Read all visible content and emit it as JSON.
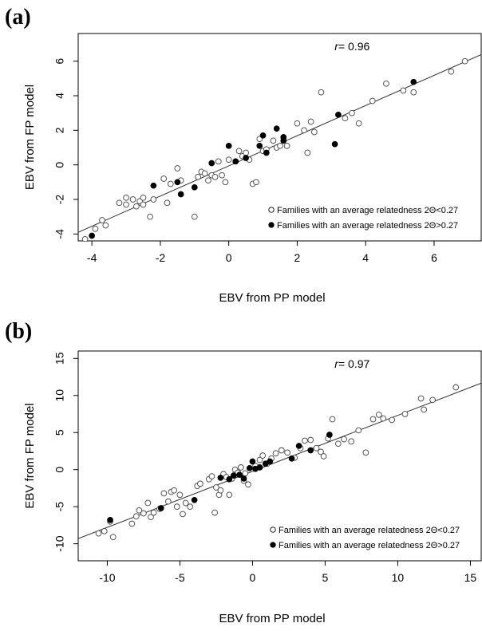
{
  "chart_data": [
    {
      "type": "scatter",
      "panel_label": "(a)",
      "xlabel": "EBV from PP model",
      "ylabel": "EBV from FP model",
      "xlim": [
        -4.4,
        7.4
      ],
      "ylim": [
        -4.4,
        7.6
      ],
      "xticks": [
        -4,
        -2,
        0,
        2,
        4,
        6
      ],
      "yticks": [
        -4,
        -2,
        0,
        2,
        4,
        6
      ],
      "annotation": {
        "prefix": "r",
        "text": "= 0.96"
      },
      "regression_line": {
        "x": [
          -4.4,
          7.4
        ],
        "y": [
          -3.9,
          6.4
        ]
      },
      "grid": false,
      "legend_position": "bottom-right",
      "series": [
        {
          "name": "Families with an average relatedness 2Θ<0.27",
          "marker": "open-circle",
          "points": [
            [
              -4.2,
              -4.3
            ],
            [
              -3.9,
              -3.7
            ],
            [
              -3.7,
              -3.2
            ],
            [
              -3.6,
              -3.5
            ],
            [
              -3.2,
              -2.2
            ],
            [
              -3.0,
              -1.9
            ],
            [
              -3.0,
              -2.3
            ],
            [
              -2.8,
              -2.0
            ],
            [
              -2.7,
              -2.4
            ],
            [
              -2.6,
              -2.1
            ],
            [
              -2.5,
              -1.9
            ],
            [
              -2.5,
              -2.3
            ],
            [
              -2.3,
              -3.0
            ],
            [
              -2.2,
              -2.0
            ],
            [
              -1.9,
              -0.8
            ],
            [
              -1.8,
              -2.2
            ],
            [
              -1.7,
              -1.1
            ],
            [
              -1.5,
              -0.2
            ],
            [
              -1.4,
              -0.9
            ],
            [
              -1.0,
              -3.0
            ],
            [
              -0.9,
              -0.7
            ],
            [
              -0.8,
              -0.4
            ],
            [
              -0.7,
              -0.5
            ],
            [
              -0.6,
              -0.9
            ],
            [
              -0.5,
              -0.6
            ],
            [
              -0.4,
              -0.7
            ],
            [
              -0.3,
              0.2
            ],
            [
              -0.2,
              -0.6
            ],
            [
              -0.1,
              -1.0
            ],
            [
              0.0,
              0.3
            ],
            [
              0.2,
              0.2
            ],
            [
              0.3,
              0.8
            ],
            [
              0.4,
              0.5
            ],
            [
              0.5,
              0.7
            ],
            [
              0.6,
              0.3
            ],
            [
              0.7,
              -1.1
            ],
            [
              0.8,
              -1.0
            ],
            [
              0.9,
              1.5
            ],
            [
              1.0,
              0.8
            ],
            [
              1.1,
              0.9
            ],
            [
              1.3,
              1.4
            ],
            [
              1.4,
              1.0
            ],
            [
              1.5,
              1.1
            ],
            [
              1.6,
              1.6
            ],
            [
              1.7,
              1.1
            ],
            [
              2.0,
              2.4
            ],
            [
              2.2,
              2.0
            ],
            [
              2.3,
              0.7
            ],
            [
              2.4,
              2.5
            ],
            [
              2.5,
              1.9
            ],
            [
              2.7,
              4.2
            ],
            [
              3.4,
              2.7
            ],
            [
              3.6,
              3.0
            ],
            [
              3.8,
              2.4
            ],
            [
              4.2,
              3.7
            ],
            [
              4.6,
              4.7
            ],
            [
              5.1,
              4.3
            ],
            [
              5.4,
              4.2
            ],
            [
              6.5,
              5.4
            ],
            [
              6.9,
              6.0
            ]
          ]
        },
        {
          "name": "Families with an average relatedness 2Θ>0.27",
          "marker": "filled-circle",
          "points": [
            [
              -4.0,
              -4.1
            ],
            [
              -2.2,
              -1.2
            ],
            [
              -1.5,
              -1.0
            ],
            [
              -1.4,
              -1.7
            ],
            [
              -1.0,
              -1.3
            ],
            [
              -0.5,
              0.1
            ],
            [
              0.0,
              1.1
            ],
            [
              0.2,
              0.2
            ],
            [
              0.5,
              0.4
            ],
            [
              0.9,
              1.1
            ],
            [
              1.0,
              1.7
            ],
            [
              1.1,
              0.7
            ],
            [
              1.4,
              2.1
            ],
            [
              1.6,
              1.6
            ],
            [
              1.6,
              1.4
            ],
            [
              3.1,
              1.2
            ],
            [
              3.2,
              2.9
            ],
            [
              5.4,
              4.8
            ]
          ]
        }
      ]
    },
    {
      "type": "scatter",
      "panel_label": "(b)",
      "xlabel": "EBV from PP model",
      "ylabel": "EBV from FP model",
      "xlim": [
        -12,
        15.8
      ],
      "ylim": [
        -12.3,
        16
      ],
      "xticks": [
        -10,
        -5,
        0,
        5,
        10,
        15
      ],
      "yticks": [
        -10,
        -5,
        0,
        5,
        10,
        15
      ],
      "annotation": {
        "prefix": "r",
        "text": "= 0.97"
      },
      "regression_line": {
        "x": [
          -12,
          15.8
        ],
        "y": [
          -9.3,
          11.7
        ]
      },
      "grid": false,
      "legend_position": "bottom-right",
      "series": [
        {
          "name": "Families with an average relatedness 2Θ<0.27",
          "marker": "open-circle",
          "points": [
            [
              -10.6,
              -8.6
            ],
            [
              -10.2,
              -8.3
            ],
            [
              -9.8,
              -7.0
            ],
            [
              -9.6,
              -9.1
            ],
            [
              -8.3,
              -7.3
            ],
            [
              -8.0,
              -6.3
            ],
            [
              -7.8,
              -5.5
            ],
            [
              -7.5,
              -5.9
            ],
            [
              -7.2,
              -4.5
            ],
            [
              -7.0,
              -6.4
            ],
            [
              -6.8,
              -5.8
            ],
            [
              -6.4,
              -5.3
            ],
            [
              -6.1,
              -3.2
            ],
            [
              -5.8,
              -4.3
            ],
            [
              -5.6,
              -3.0
            ],
            [
              -5.4,
              -2.8
            ],
            [
              -5.2,
              -5.0
            ],
            [
              -5.0,
              -3.4
            ],
            [
              -4.8,
              -6.0
            ],
            [
              -4.6,
              -4.5
            ],
            [
              -4.3,
              -5.0
            ],
            [
              -3.8,
              -2.2
            ],
            [
              -3.6,
              -1.9
            ],
            [
              -3.0,
              -1.3
            ],
            [
              -2.8,
              -0.9
            ],
            [
              -2.6,
              -5.8
            ],
            [
              -2.5,
              -2.4
            ],
            [
              -2.3,
              -3.4
            ],
            [
              -2.2,
              -2.8
            ],
            [
              -2.0,
              -0.6
            ],
            [
              -1.8,
              -1.0
            ],
            [
              -1.6,
              -3.4
            ],
            [
              -1.4,
              -1.2
            ],
            [
              -1.2,
              0.0
            ],
            [
              -1.0,
              -0.4
            ],
            [
              -0.8,
              0.3
            ],
            [
              -0.6,
              -1.5
            ],
            [
              -0.5,
              -0.5
            ],
            [
              -0.3,
              -2.0
            ],
            [
              0.2,
              0.5
            ],
            [
              0.5,
              1.3
            ],
            [
              0.7,
              1.9
            ],
            [
              1.0,
              0.8
            ],
            [
              1.3,
              1.5
            ],
            [
              1.6,
              2.2
            ],
            [
              2.0,
              2.6
            ],
            [
              2.4,
              2.3
            ],
            [
              2.9,
              1.6
            ],
            [
              3.3,
              2.9
            ],
            [
              3.6,
              3.9
            ],
            [
              4.0,
              4.0
            ],
            [
              4.4,
              2.9
            ],
            [
              4.7,
              2.4
            ],
            [
              4.9,
              1.8
            ],
            [
              5.2,
              4.2
            ],
            [
              5.5,
              6.8
            ],
            [
              5.9,
              3.5
            ],
            [
              6.3,
              4.1
            ],
            [
              6.8,
              3.8
            ],
            [
              7.3,
              5.3
            ],
            [
              7.8,
              2.3
            ],
            [
              8.3,
              6.8
            ],
            [
              8.7,
              7.4
            ],
            [
              9.0,
              6.9
            ],
            [
              9.6,
              6.7
            ],
            [
              10.5,
              7.5
            ],
            [
              11.6,
              9.6
            ],
            [
              11.8,
              8.1
            ],
            [
              12.4,
              9.4
            ],
            [
              14.0,
              11.1
            ]
          ]
        },
        {
          "name": "Families with an average relatedness 2Θ>0.27",
          "marker": "filled-circle",
          "points": [
            [
              -9.8,
              -6.8
            ],
            [
              -6.3,
              -5.2
            ],
            [
              -4.0,
              -4.1
            ],
            [
              -2.2,
              -1.1
            ],
            [
              -1.6,
              -1.3
            ],
            [
              -1.3,
              -0.8
            ],
            [
              -0.9,
              -0.7
            ],
            [
              -0.6,
              -1.2
            ],
            [
              -0.2,
              0.2
            ],
            [
              0.0,
              1.1
            ],
            [
              0.2,
              0.1
            ],
            [
              0.5,
              0.3
            ],
            [
              0.9,
              0.8
            ],
            [
              1.2,
              1.1
            ],
            [
              2.7,
              1.5
            ],
            [
              3.2,
              3.2
            ],
            [
              4.0,
              2.6
            ],
            [
              5.3,
              4.7
            ]
          ]
        }
      ]
    }
  ]
}
